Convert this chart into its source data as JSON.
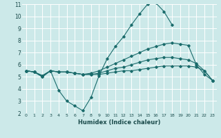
{
  "xlabel": "Humidex (Indice chaleur)",
  "bg_color": "#cce9e9",
  "grid_color": "#ffffff",
  "line_color": "#1a6b6b",
  "xlim": [
    -0.5,
    23.5
  ],
  "ylim": [
    2,
    11
  ],
  "xticks": [
    0,
    1,
    2,
    3,
    4,
    5,
    6,
    7,
    8,
    9,
    10,
    11,
    12,
    13,
    14,
    15,
    16,
    17,
    18,
    19,
    20,
    21,
    22,
    23
  ],
  "yticks": [
    2,
    3,
    4,
    5,
    6,
    7,
    8,
    9,
    10,
    11
  ],
  "series": [
    {
      "x": [
        0,
        1,
        2,
        3,
        4,
        5,
        6,
        7,
        8,
        9,
        10,
        11,
        12,
        13,
        14,
        15,
        16,
        17,
        18
      ],
      "y": [
        5.5,
        5.4,
        5.0,
        5.5,
        3.9,
        3.0,
        2.6,
        2.2,
        3.3,
        5.1,
        6.5,
        7.5,
        8.3,
        9.3,
        10.2,
        11.0,
        11.1,
        10.4,
        9.3
      ]
    },
    {
      "x": [
        0,
        1,
        2,
        3,
        4,
        5,
        6,
        7,
        8,
        9,
        10,
        11,
        12,
        13,
        14,
        15,
        16,
        17,
        18,
        19,
        20,
        21,
        22,
        23
      ],
      "y": [
        5.5,
        5.4,
        5.0,
        5.5,
        5.4,
        5.4,
        5.3,
        5.2,
        5.2,
        5.2,
        5.3,
        5.4,
        5.5,
        5.5,
        5.6,
        5.7,
        5.8,
        5.9,
        5.9,
        5.9,
        5.9,
        5.8,
        5.5,
        4.7
      ]
    },
    {
      "x": [
        0,
        1,
        2,
        3,
        4,
        5,
        6,
        7,
        8,
        9,
        10,
        11,
        12,
        13,
        14,
        15,
        16,
        17,
        18,
        19,
        20,
        21,
        22,
        23
      ],
      "y": [
        5.5,
        5.4,
        5.1,
        5.5,
        5.4,
        5.4,
        5.3,
        5.2,
        5.2,
        5.3,
        5.5,
        5.7,
        5.8,
        6.0,
        6.2,
        6.4,
        6.5,
        6.6,
        6.6,
        6.5,
        6.4,
        6.1,
        5.5,
        4.7
      ]
    },
    {
      "x": [
        0,
        1,
        2,
        3,
        4,
        5,
        6,
        7,
        8,
        9,
        10,
        11,
        12,
        13,
        14,
        15,
        16,
        17,
        18,
        19,
        20,
        21,
        22,
        23
      ],
      "y": [
        5.5,
        5.4,
        5.1,
        5.5,
        5.4,
        5.4,
        5.3,
        5.2,
        5.3,
        5.5,
        5.8,
        6.1,
        6.4,
        6.7,
        7.0,
        7.3,
        7.5,
        7.7,
        7.8,
        7.7,
        7.6,
        6.0,
        5.2,
        4.7
      ]
    }
  ]
}
